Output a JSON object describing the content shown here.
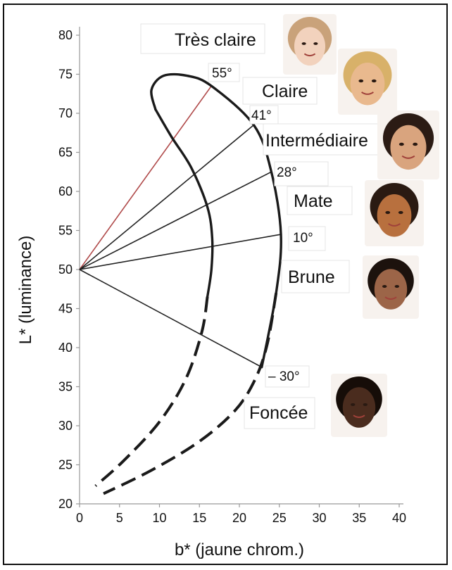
{
  "chart_data": {
    "type": "line",
    "xlabel": "b* (jaune chrom.)",
    "ylabel": "L* (luminance)",
    "xlim": [
      0,
      40
    ],
    "ylim": [
      20,
      80
    ],
    "x_ticks": [
      "0",
      "5",
      "10",
      "15",
      "20",
      "25",
      "30",
      "35",
      "40"
    ],
    "y_ticks": [
      "20",
      "25",
      "30",
      "35",
      "40",
      "45",
      "50",
      "55",
      "60",
      "65",
      "70",
      "75",
      "80"
    ],
    "grid": false,
    "origin": {
      "x": 0,
      "y": 50
    },
    "angle_rays": [
      {
        "label": "55°",
        "x": 16.5,
        "y": 73.5,
        "color": "#222222"
      },
      {
        "label": "41°",
        "x": 21.8,
        "y": 68.5,
        "color": "#222222"
      },
      {
        "label": "28°",
        "x": 24.0,
        "y": 62.5,
        "color": "#222222"
      },
      {
        "label": "10°",
        "x": 25.2,
        "y": 54.5,
        "color": "#222222"
      },
      {
        "label": "– 30°",
        "x": 22.8,
        "y": 37.5,
        "color": "#222222"
      }
    ],
    "first_ray_color": "#b04a4a",
    "categories": [
      {
        "label": "Très claire",
        "face": "#f2d2bd"
      },
      {
        "label": "Claire",
        "face": "#e9b98e"
      },
      {
        "label": "Intermédiaire",
        "face": "#d9a47e"
      },
      {
        "label": "Mate",
        "face": "#b8703e"
      },
      {
        "label": "Brune",
        "face": "#9c6548"
      },
      {
        "label": "Foncée",
        "face": "#4a2c1e"
      }
    ],
    "outer_boundary_solid": [
      [
        22.8,
        37.5
      ],
      [
        24.6,
        47
      ],
      [
        25.2,
        54.5
      ],
      [
        24.0,
        62.5
      ],
      [
        21.8,
        68.5
      ],
      [
        16.5,
        73.5
      ],
      [
        13.5,
        74.8
      ],
      [
        10.5,
        74.8
      ],
      [
        9.0,
        73.0
      ],
      [
        9.5,
        70.5
      ]
    ],
    "inner_boundary_solid": [
      [
        9.5,
        70.5
      ],
      [
        11.5,
        67.0
      ],
      [
        14.0,
        63.0
      ],
      [
        16.0,
        58.0
      ],
      [
        16.6,
        54.0
      ],
      [
        16.5,
        50.0
      ],
      [
        16.0,
        46.5
      ]
    ],
    "outer_boundary_dashed": [
      [
        24.6,
        47
      ],
      [
        23.5,
        40.5
      ],
      [
        22.0,
        36.0
      ],
      [
        19.5,
        32.0
      ],
      [
        15.0,
        28.0
      ],
      [
        9.0,
        24.3
      ],
      [
        3.0,
        21.3
      ]
    ],
    "inner_boundary_dashed": [
      [
        16.0,
        46.5
      ],
      [
        15.3,
        42.0
      ],
      [
        13.3,
        36.0
      ],
      [
        10.0,
        30.5
      ],
      [
        5.5,
        25.5
      ],
      [
        2.0,
        22.3
      ]
    ]
  }
}
